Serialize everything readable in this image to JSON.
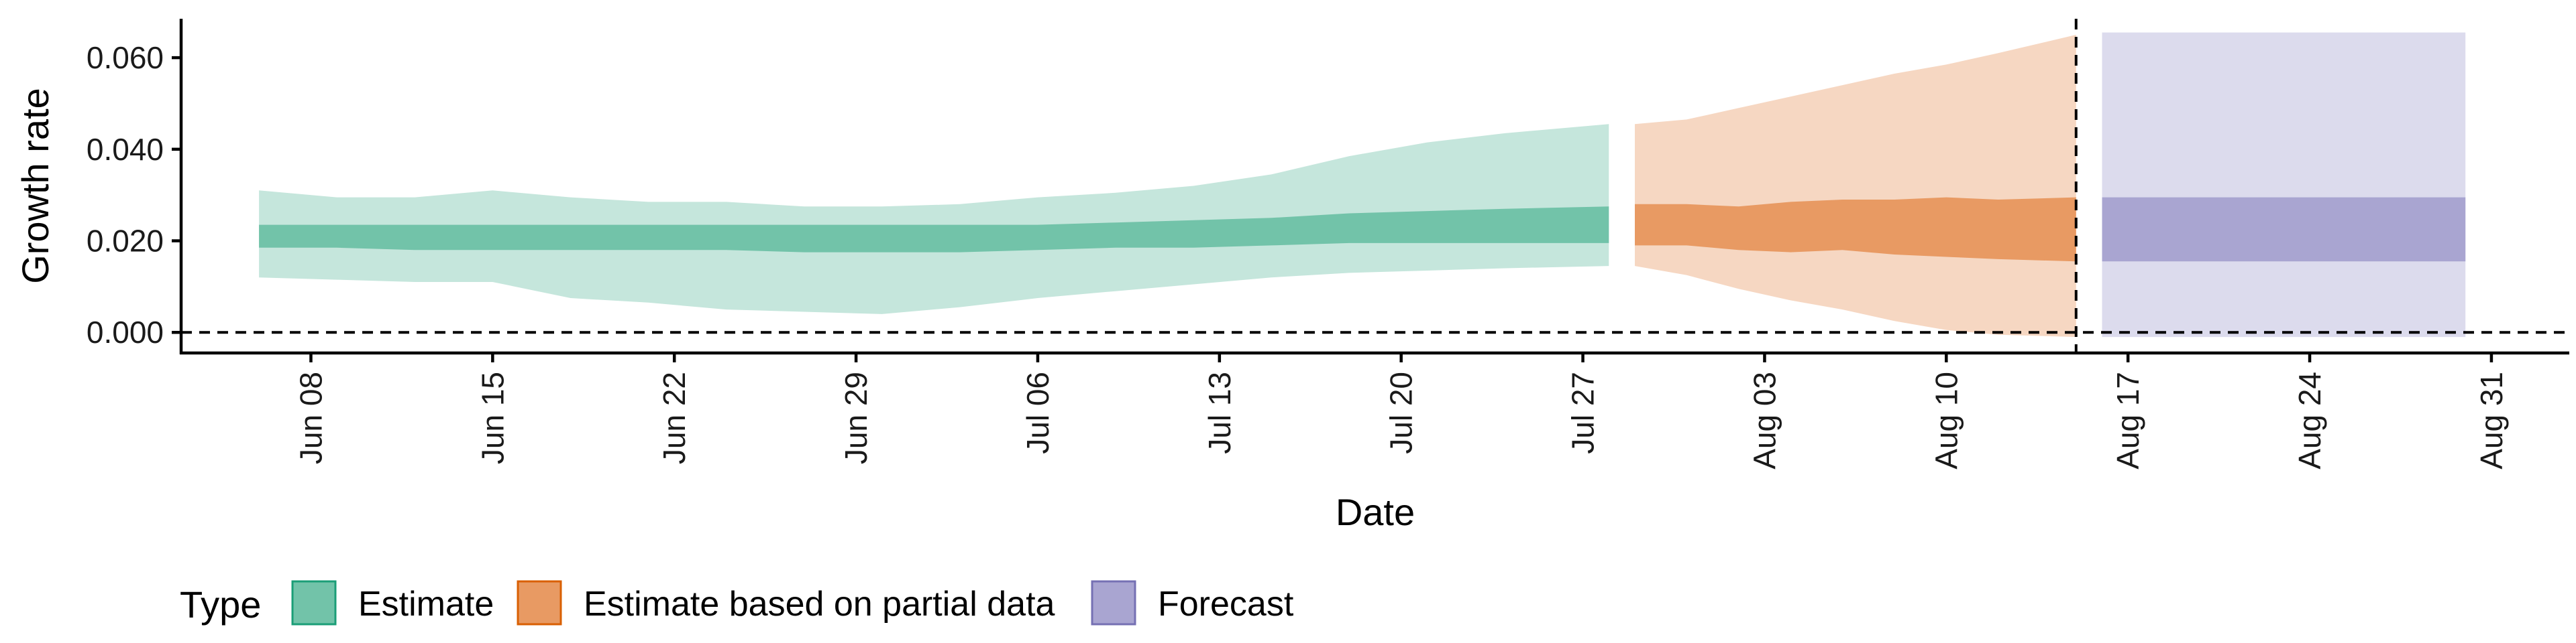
{
  "chart_data": {
    "type": "area",
    "xlabel": "Date",
    "ylabel": "Growth rate",
    "xlim": [
      "2021-06-03",
      "2021-09-03"
    ],
    "ylim": [
      -0.0045,
      0.0685
    ],
    "y_ticks": [
      0.0,
      0.02,
      0.04,
      0.06
    ],
    "y_tick_labels": [
      "0.000",
      "0.020",
      "0.040",
      "0.060"
    ],
    "x_ticks": [
      "2021-06-08",
      "2021-06-15",
      "2021-06-22",
      "2021-06-29",
      "2021-07-06",
      "2021-07-13",
      "2021-07-20",
      "2021-07-27",
      "2021-08-03",
      "2021-08-10",
      "2021-08-17",
      "2021-08-24",
      "2021-08-31"
    ],
    "x_tick_labels": [
      "Jun 08",
      "Jun 15",
      "Jun 22",
      "Jun 29",
      "Jul 06",
      "Jul 13",
      "Jul 20",
      "Jul 27",
      "Aug 03",
      "Aug 10",
      "Aug 17",
      "Aug 24",
      "Aug 31"
    ],
    "reference_lines": {
      "horizontal_y": 0.0,
      "vertical_x": "2021-08-15"
    },
    "legend": {
      "title": "Type",
      "position": "bottom",
      "entries": [
        {
          "label": "Estimate",
          "color": "#72c3a9"
        },
        {
          "label": "Estimate based on partial data",
          "color": "#e89a63"
        },
        {
          "label": "Forecast",
          "color": "#a9a5d1"
        }
      ]
    },
    "series": [
      {
        "name": "Estimate",
        "color": "#72c3a9",
        "outer_color": "#c5e6dc",
        "x": [
          "2021-06-06",
          "2021-06-09",
          "2021-06-12",
          "2021-06-15",
          "2021-06-18",
          "2021-06-21",
          "2021-06-24",
          "2021-06-27",
          "2021-06-30",
          "2021-07-03",
          "2021-07-06",
          "2021-07-09",
          "2021-07-12",
          "2021-07-15",
          "2021-07-18",
          "2021-07-21",
          "2021-07-24",
          "2021-07-28"
        ],
        "outer_lower": [
          0.012,
          0.0115,
          0.011,
          0.011,
          0.0075,
          0.0065,
          0.005,
          0.0045,
          0.004,
          0.0055,
          0.0075,
          0.009,
          0.0105,
          0.012,
          0.013,
          0.0135,
          0.014,
          0.0145
        ],
        "outer_upper": [
          0.031,
          0.0295,
          0.0295,
          0.031,
          0.0295,
          0.0285,
          0.0285,
          0.0275,
          0.0275,
          0.028,
          0.0295,
          0.0305,
          0.032,
          0.0345,
          0.0385,
          0.0415,
          0.0435,
          0.0455
        ],
        "inner_lower": [
          0.0185,
          0.0185,
          0.018,
          0.018,
          0.018,
          0.018,
          0.018,
          0.0175,
          0.0175,
          0.0175,
          0.018,
          0.0185,
          0.0185,
          0.019,
          0.0195,
          0.0195,
          0.0195,
          0.0195
        ],
        "inner_upper": [
          0.0235,
          0.0235,
          0.0235,
          0.0235,
          0.0235,
          0.0235,
          0.0235,
          0.0235,
          0.0235,
          0.0235,
          0.0235,
          0.024,
          0.0245,
          0.025,
          0.026,
          0.0265,
          0.027,
          0.0275
        ]
      },
      {
        "name": "Estimate based on partial data",
        "color": "#e89a63",
        "outer_color": "#f6d7c2",
        "x": [
          "2021-07-29",
          "2021-07-31",
          "2021-08-02",
          "2021-08-04",
          "2021-08-06",
          "2021-08-08",
          "2021-08-10",
          "2021-08-12",
          "2021-08-15"
        ],
        "outer_lower": [
          0.0145,
          0.0125,
          0.0095,
          0.007,
          0.005,
          0.0025,
          0.0005,
          -0.0005,
          -0.001
        ],
        "outer_upper": [
          0.0455,
          0.0465,
          0.049,
          0.0515,
          0.054,
          0.0565,
          0.0585,
          0.061,
          0.065
        ],
        "inner_lower": [
          0.019,
          0.019,
          0.018,
          0.0175,
          0.018,
          0.017,
          0.0165,
          0.016,
          0.0155
        ],
        "inner_upper": [
          0.028,
          0.028,
          0.0275,
          0.0285,
          0.029,
          0.029,
          0.0295,
          0.029,
          0.0295
        ]
      },
      {
        "name": "Forecast",
        "color": "#a9a5d1",
        "outer_color": "#dcdbed",
        "x": [
          "2021-08-16",
          "2021-08-30"
        ],
        "outer_lower": [
          -0.001,
          -0.001
        ],
        "outer_upper": [
          0.0655,
          0.0655
        ],
        "inner_lower": [
          0.0155,
          0.0155
        ],
        "inner_upper": [
          0.0295,
          0.0295
        ]
      }
    ]
  }
}
